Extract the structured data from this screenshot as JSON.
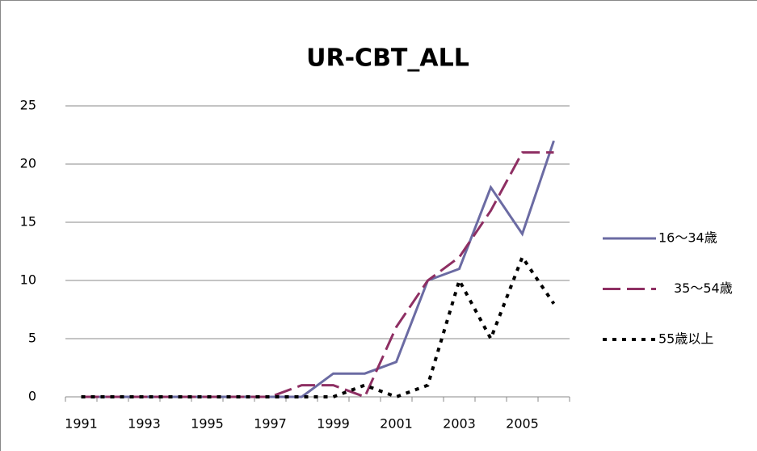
{
  "chart_data": {
    "type": "line",
    "title": "UR-CBT_ALL",
    "categories": [
      "1991",
      null,
      "1993",
      null,
      "1995",
      null,
      "1997",
      null,
      "1999",
      null,
      "2001",
      null,
      "2003",
      null,
      "2005",
      null
    ],
    "series": [
      {
        "name": "16～34歳",
        "color": "#6b6ba3",
        "line_style": "solid",
        "values": [
          0,
          0,
          0,
          0,
          0,
          0,
          0,
          0,
          2,
          2,
          3,
          10,
          11,
          18,
          14,
          22
        ]
      },
      {
        "name": "35～54歳",
        "color": "#8e2f63",
        "line_style": "dashed",
        "values": [
          0,
          0,
          0,
          0,
          0,
          0,
          0,
          1,
          1,
          0,
          6,
          10,
          12,
          16,
          21,
          21
        ]
      },
      {
        "name": "55歳以上",
        "color": "#000000",
        "line_style": "dotted",
        "values": [
          0,
          0,
          0,
          0,
          0,
          0,
          0,
          0,
          0,
          1,
          0,
          1,
          10,
          5,
          12,
          8
        ]
      }
    ],
    "ylim": [
      0,
      25
    ],
    "yticks": [
      0,
      5,
      10,
      15,
      20,
      25
    ],
    "grid": true,
    "legend": "right"
  }
}
